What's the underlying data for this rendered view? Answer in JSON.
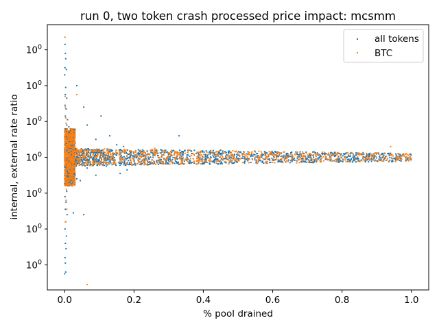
{
  "chart_data": {
    "type": "scatter",
    "title": "run 0, two token crash processed price impact: mcsmm",
    "xlabel": "% pool drained",
    "ylabel": "internal, external rate ratio",
    "xlim": [
      -0.05,
      1.05
    ],
    "ylim": [
      0.9926,
      1.0074
    ],
    "y_scale": "log",
    "x_ticks": [
      0.0,
      0.2,
      0.4,
      0.6,
      0.8,
      1.0
    ],
    "x_tick_labels": [
      "0.0",
      "0.2",
      "0.4",
      "0.6",
      "0.8",
      "1.0"
    ],
    "y_tick_labels": [
      "10^0",
      "10^0",
      "10^0",
      "10^0",
      "10^0",
      "10^0",
      "10^0"
    ],
    "y_tick_values": [
      0.994,
      0.996,
      0.998,
      1.0,
      1.002,
      1.004,
      1.006
    ],
    "grid": false,
    "legend": {
      "placement": "top-right",
      "entries": [
        "all tokens",
        "BTC"
      ]
    },
    "colors": {
      "all tokens": "#1f77b4",
      "BTC": "#ff7f0e"
    },
    "series": [
      {
        "name": "all tokens",
        "points": [
          [
            0.001,
            1.0063
          ],
          [
            0.002,
            1.0058
          ],
          [
            0.003,
            1.0055
          ],
          [
            0.001,
            1.005
          ],
          [
            0.005,
            1.0049
          ],
          [
            0.0,
            1.0046
          ],
          [
            0.003,
            1.0039
          ],
          [
            0.002,
            1.0035
          ],
          [
            0.006,
            1.0033
          ],
          [
            0.001,
            1.0029
          ],
          [
            0.004,
            1.0027
          ],
          [
            0.002,
            1.0023
          ],
          [
            0.008,
            1.0021
          ],
          [
            0.006,
            1.0018
          ],
          [
            0.012,
            1.0017
          ],
          [
            0.003,
            1.0015
          ],
          [
            0.015,
            1.0014
          ],
          [
            0.009,
            1.0012
          ],
          [
            0.02,
            1.0011
          ],
          [
            0.004,
            1.0009
          ],
          [
            0.035,
            1.004
          ],
          [
            0.055,
            1.0028
          ],
          [
            0.105,
            1.0023
          ],
          [
            0.065,
            1.0018
          ],
          [
            0.13,
            1.0012
          ],
          [
            0.09,
            1.001
          ],
          [
            0.15,
            1.0007
          ],
          [
            0.17,
            1.0006
          ],
          [
            0.33,
            1.0012
          ],
          [
            0.45,
            1.0004
          ],
          [
            0.001,
            0.9992
          ],
          [
            0.003,
            0.9989
          ],
          [
            0.002,
            0.9985
          ],
          [
            0.006,
            0.9981
          ],
          [
            0.001,
            0.9978
          ],
          [
            0.004,
            0.9975
          ],
          [
            0.002,
            0.9971
          ],
          [
            0.007,
            0.9968
          ],
          [
            0.003,
            0.9964
          ],
          [
            0.001,
            0.996
          ],
          [
            0.005,
            0.9956
          ],
          [
            0.002,
            0.9952
          ],
          [
            0.004,
            0.9949
          ],
          [
            0.001,
            0.9944
          ],
          [
            0.002,
            0.9941
          ],
          [
            0.0,
            0.9935
          ],
          [
            0.003,
            0.9936
          ],
          [
            0.025,
            0.9969
          ],
          [
            0.055,
            0.9968
          ],
          [
            0.035,
            0.9988
          ],
          [
            0.045,
            0.9987
          ],
          [
            0.09,
            0.999
          ],
          [
            0.16,
            0.9991
          ],
          [
            0.18,
            0.9993
          ],
          [
            0.065,
            0.9994
          ],
          [
            0.12,
            0.9995
          ],
          [
            0.19,
            0.9996
          ],
          [
            0.23,
            0.9997
          ],
          [
            0.65,
            0.9997
          ],
          [
            0.72,
            1.0003
          ]
        ]
      },
      {
        "name": "BTC",
        "points": [
          [
            0.001,
            1.0067
          ],
          [
            0.001,
            1.0034
          ],
          [
            0.002,
            1.0028
          ],
          [
            0.003,
            1.0022
          ],
          [
            0.004,
            1.0019
          ],
          [
            0.006,
            1.0015
          ],
          [
            0.008,
            1.0012
          ],
          [
            0.005,
            1.001
          ],
          [
            0.035,
            1.0035
          ],
          [
            0.022,
            1.0013
          ],
          [
            0.26,
            1.0005
          ],
          [
            0.55,
            1.0003
          ],
          [
            0.94,
            1.0006
          ],
          [
            0.002,
            0.9992
          ],
          [
            0.003,
            0.9987
          ],
          [
            0.005,
            0.9982
          ],
          [
            0.004,
            0.9976
          ],
          [
            0.006,
            0.9971
          ],
          [
            0.002,
            0.9964
          ],
          [
            0.065,
            0.9929
          ],
          [
            0.03,
            0.9995
          ],
          [
            0.08,
            0.9996
          ],
          [
            0.14,
            0.9997
          ],
          [
            0.38,
            0.9998
          ],
          [
            0.62,
            1.0002
          ]
        ]
      }
    ]
  }
}
